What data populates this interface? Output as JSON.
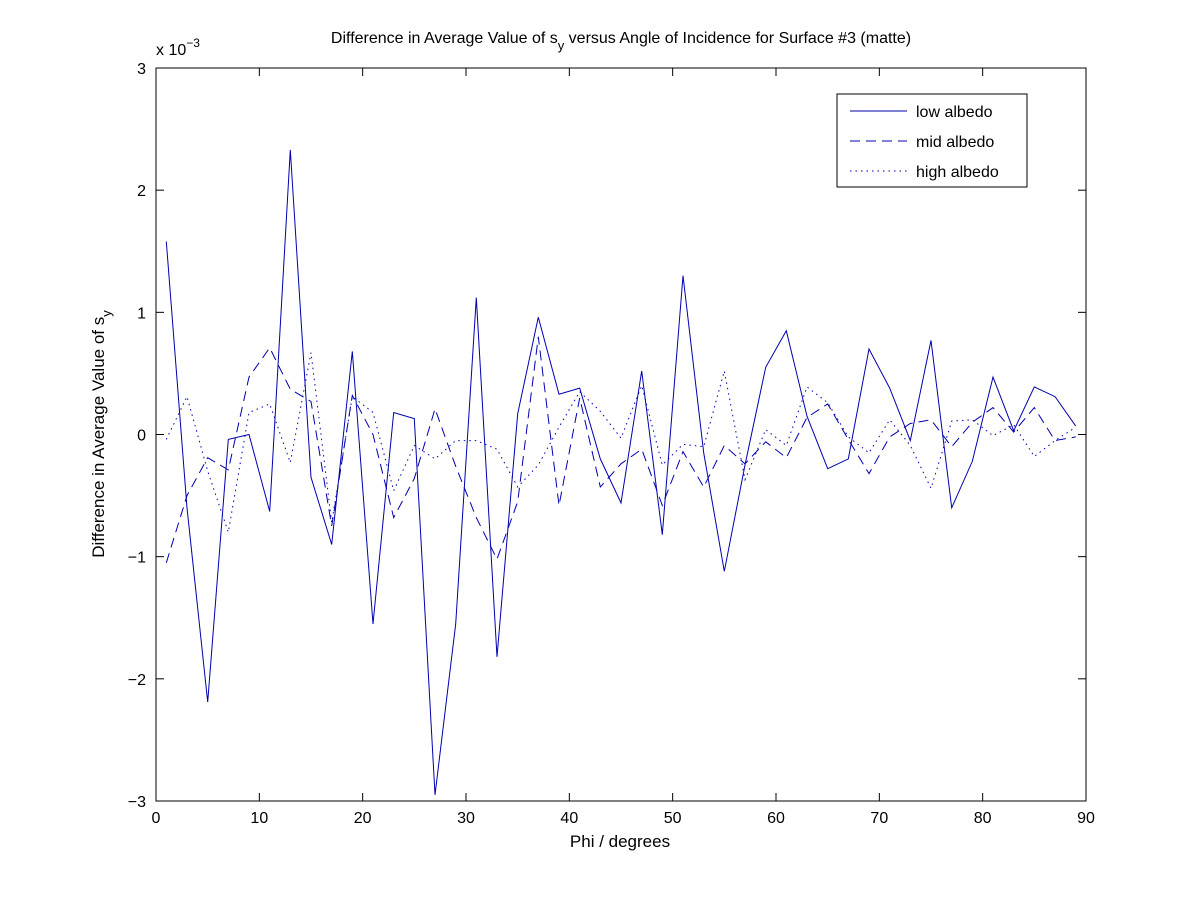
{
  "chart_data": {
    "type": "line",
    "title_main": "Difference in Average Value of s",
    "title_sub": "y",
    "title_rest": " versus Angle of Incidence for Surface #3 (matte)",
    "xlabel": "Phi / degrees",
    "ylabel_main": "Difference in Average Value of s",
    "ylabel_sub": "y",
    "exponent_label": "x 10",
    "exponent_value": "−3",
    "xlim": [
      0,
      90
    ],
    "ylim": [
      -3,
      3
    ],
    "x_ticks": [
      0,
      10,
      20,
      30,
      40,
      50,
      60,
      70,
      80,
      90
    ],
    "x_tick_labels": [
      "0",
      "10",
      "20",
      "30",
      "40",
      "50",
      "60",
      "70",
      "80",
      "90"
    ],
    "y_ticks": [
      -3,
      -2,
      -1,
      0,
      1,
      2,
      3
    ],
    "y_tick_labels": [
      "−3",
      "−2",
      "−1",
      "0",
      "1",
      "2",
      "3"
    ],
    "y_scale": "×10^-3",
    "grid": false,
    "legend_position": "top-right",
    "line_color": "#0000b0",
    "x": [
      1,
      3,
      5,
      7,
      9,
      11,
      13,
      15,
      17,
      19,
      21,
      23,
      25,
      27,
      29,
      31,
      33,
      35,
      37,
      39,
      41,
      43,
      45,
      47,
      49,
      51,
      53,
      55,
      57,
      59,
      61,
      63,
      65,
      67,
      69,
      71,
      73,
      75,
      77,
      79,
      81,
      83,
      85,
      87,
      89
    ],
    "series": [
      {
        "name": "low albedo",
        "style": "solid",
        "values": [
          1.58,
          -0.6,
          -2.19,
          -0.04,
          0.0,
          -0.63,
          2.33,
          -0.35,
          -0.9,
          0.68,
          -1.55,
          0.18,
          0.13,
          -2.95,
          -1.55,
          1.12,
          -1.82,
          0.17,
          0.96,
          0.33,
          0.38,
          -0.2,
          -0.56,
          0.52,
          -0.82,
          1.3,
          -0.15,
          -1.12,
          -0.25,
          0.55,
          0.85,
          0.15,
          -0.28,
          -0.2,
          0.7,
          0.38,
          -0.05,
          0.77,
          -0.6,
          -0.22,
          0.47,
          0.03,
          0.39,
          0.31,
          0.07
        ]
      },
      {
        "name": "mid albedo",
        "style": "dashed",
        "values": [
          -1.05,
          -0.5,
          -0.19,
          -0.29,
          0.47,
          0.71,
          0.37,
          0.27,
          -0.75,
          0.32,
          0.0,
          -0.68,
          -0.36,
          0.21,
          -0.26,
          -0.68,
          -1.02,
          -0.55,
          0.8,
          -0.58,
          0.3,
          -0.43,
          -0.24,
          -0.12,
          -0.58,
          -0.14,
          -0.43,
          -0.09,
          -0.24,
          -0.06,
          -0.19,
          0.14,
          0.25,
          -0.04,
          -0.32,
          -0.02,
          0.09,
          0.12,
          -0.1,
          0.1,
          0.22,
          0.02,
          0.22,
          -0.05,
          -0.02
        ]
      },
      {
        "name": "high albedo",
        "style": "dotted",
        "values": [
          -0.04,
          0.31,
          -0.3,
          -0.8,
          0.18,
          0.25,
          -0.23,
          0.67,
          -0.72,
          0.31,
          0.18,
          -0.46,
          -0.09,
          -0.2,
          -0.05,
          -0.05,
          -0.12,
          -0.43,
          -0.25,
          0.06,
          0.35,
          0.19,
          -0.03,
          0.4,
          -0.25,
          -0.08,
          -0.1,
          0.52,
          -0.37,
          0.04,
          -0.09,
          0.39,
          0.26,
          -0.02,
          -0.15,
          0.12,
          -0.09,
          -0.44,
          0.11,
          0.12,
          -0.01,
          0.08,
          -0.18,
          -0.05,
          0.06
        ]
      }
    ]
  }
}
